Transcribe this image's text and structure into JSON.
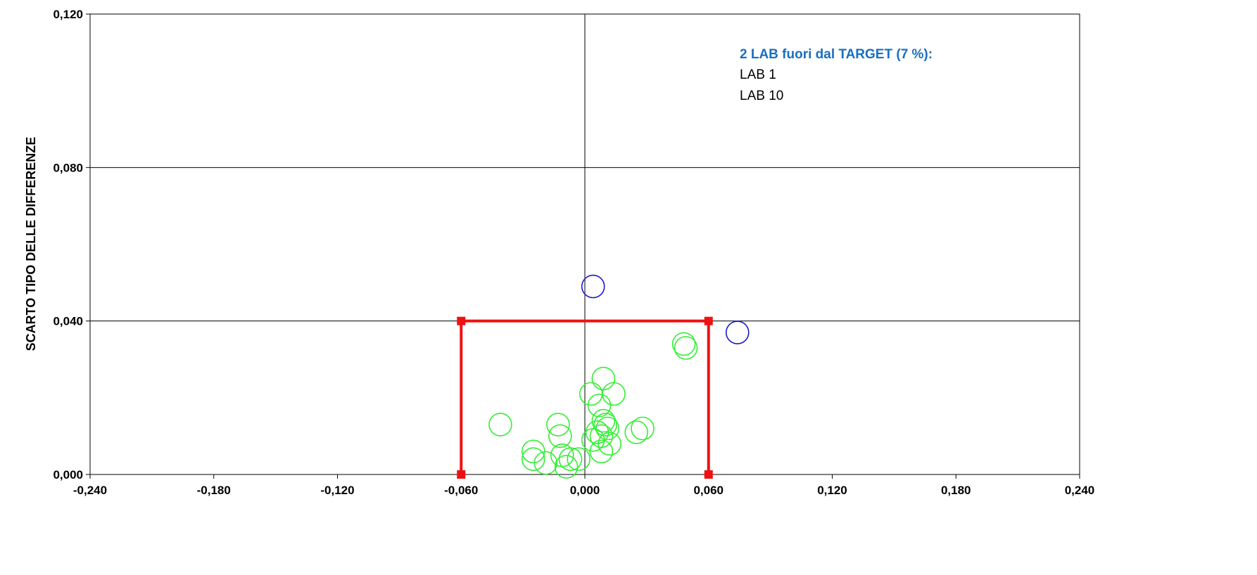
{
  "chart_data": {
    "type": "scatter",
    "title": "",
    "xlabel": "",
    "ylabel": "SCARTO TIPO DELLE DIFFERENZE",
    "xlim": [
      -0.24,
      0.24
    ],
    "ylim": [
      0,
      0.12
    ],
    "x_ticks": [
      "-0,240",
      "-0,180",
      "-0,120",
      "-0,060",
      "0,000",
      "0,060",
      "0,120",
      "0,180",
      "0,240"
    ],
    "y_ticks": [
      "0,000",
      "0,040",
      "0,080",
      "0,120"
    ],
    "grid": "horizontal major gridlines; vertical line at x=0",
    "colors": {
      "inside": "#33ee33",
      "outside": "#1a1acc",
      "target": "#ee1111",
      "annotation": "#1a6fbf"
    },
    "target_box": {
      "x": [
        -0.06,
        0.06
      ],
      "y": [
        0,
        0.04
      ]
    },
    "annotation": {
      "title": "2  LAB fuori dal TARGET (7 %):",
      "items": [
        "LAB 1",
        "LAB 10"
      ]
    },
    "series": [
      {
        "status": "outside",
        "points": [
          {
            "x": 0.004,
            "y": 0.049
          },
          {
            "x": 0.074,
            "y": 0.037
          }
        ]
      },
      {
        "status": "inside",
        "points": [
          {
            "x": -0.041,
            "y": 0.013
          },
          {
            "x": -0.025,
            "y": 0.006
          },
          {
            "x": -0.025,
            "y": 0.004
          },
          {
            "x": -0.019,
            "y": 0.003
          },
          {
            "x": -0.013,
            "y": 0.013
          },
          {
            "x": -0.012,
            "y": 0.01
          },
          {
            "x": -0.011,
            "y": 0.005
          },
          {
            "x": -0.009,
            "y": 0.002
          },
          {
            "x": -0.007,
            "y": 0.004
          },
          {
            "x": -0.003,
            "y": 0.004
          },
          {
            "x": 0.003,
            "y": 0.021
          },
          {
            "x": 0.004,
            "y": 0.009
          },
          {
            "x": 0.006,
            "y": 0.011
          },
          {
            "x": 0.007,
            "y": 0.018
          },
          {
            "x": 0.008,
            "y": 0.01
          },
          {
            "x": 0.008,
            "y": 0.006
          },
          {
            "x": 0.009,
            "y": 0.025
          },
          {
            "x": 0.009,
            "y": 0.014
          },
          {
            "x": 0.01,
            "y": 0.013
          },
          {
            "x": 0.011,
            "y": 0.012
          },
          {
            "x": 0.012,
            "y": 0.008
          },
          {
            "x": 0.014,
            "y": 0.021
          },
          {
            "x": 0.025,
            "y": 0.011
          },
          {
            "x": 0.028,
            "y": 0.012
          },
          {
            "x": 0.048,
            "y": 0.034
          },
          {
            "x": 0.049,
            "y": 0.033
          }
        ]
      }
    ]
  }
}
